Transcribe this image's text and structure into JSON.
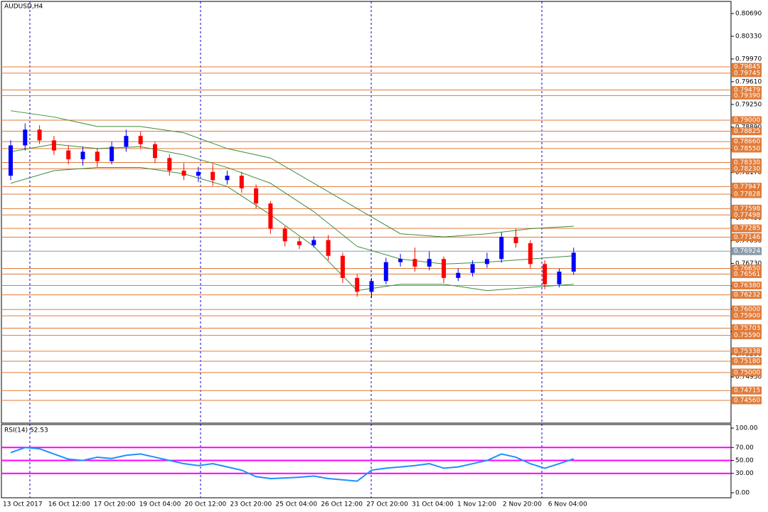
{
  "chart_data": [
    {
      "type": "candlestick",
      "title": "AUDUSD,H4",
      "ylim": [
        0.74199,
        0.80882
      ],
      "yticks": [
        {
          "value": 0.7493,
          "label": "0.74930"
        },
        {
          "value": 0.7529,
          "label": "0.75290"
        },
        {
          "value": 0.7565,
          "label": "0.75650"
        },
        {
          "value": 0.7601,
          "label": "0.76010"
        },
        {
          "value": 0.7637,
          "label": "0.76370"
        },
        {
          "value": 0.7673,
          "label": "0.76730"
        },
        {
          "value": 0.7709,
          "label": "0.77090"
        },
        {
          "value": 0.7745,
          "label": "0.77450"
        },
        {
          "value": 0.7781,
          "label": "0.77810"
        },
        {
          "value": 0.7817,
          "label": "0.78170"
        },
        {
          "value": 0.7853,
          "label": "0.78530"
        },
        {
          "value": 0.7889,
          "label": "0.78890"
        },
        {
          "value": 0.7925,
          "label": "0.79250"
        },
        {
          "value": 0.7961,
          "label": "0.79610"
        },
        {
          "value": 0.7997,
          "label": "0.79970"
        },
        {
          "value": 0.8033,
          "label": "0.80330"
        },
        {
          "value": 0.8069,
          "label": "0.80690"
        }
      ],
      "levels": [
        0.79845,
        0.79745,
        0.79479,
        {
          "value": 0.7939,
          "label": "0.79390"
        },
        {
          "value": 0.79,
          "label": "0.79000"
        },
        0.78825,
        {
          "value": 0.7866,
          "label": "0.78660"
        },
        {
          "value": 0.7855,
          "label": "0.78550"
        },
        {
          "value": 0.7833,
          "label": "0.78330"
        },
        {
          "value": 0.7823,
          "label": "0.78230"
        },
        0.77947,
        0.77828,
        0.77598,
        0.77498,
        0.77285,
        0.77146,
        {
          "value": 0.7665,
          "label": "0.76650"
        },
        0.76561,
        {
          "value": 0.7638,
          "label": "0.76380"
        },
        0.76232,
        {
          "value": 0.76,
          "label": "0.76000"
        },
        {
          "value": 0.759,
          "label": "0.75900"
        },
        0.75703,
        {
          "value": 0.7559,
          "label": "0.75590"
        },
        0.75338,
        {
          "value": 0.7518,
          "label": "0.75180"
        },
        {
          "value": 0.75,
          "label": "0.75000"
        },
        0.74715,
        {
          "value": 0.7456,
          "label": "0.74560"
        }
      ],
      "level_color": "#e07b39",
      "last_price": 0.76924,
      "up_color": "#0000ff",
      "down_color": "#ff0000",
      "open": [
        0.7812,
        0.786,
        0.7885,
        0.7868,
        0.7852,
        0.7838,
        0.785,
        0.7835,
        0.7858,
        0.7875,
        0.7862,
        0.784,
        0.782,
        0.7812,
        0.7818,
        0.7805,
        0.7812,
        0.7792,
        0.7768,
        0.7728,
        0.7708,
        0.7702,
        0.771,
        0.7685,
        0.765,
        0.7628,
        0.7645,
        0.7675,
        0.768,
        0.7668,
        0.768,
        0.765,
        0.7658,
        0.7672,
        0.768,
        0.7715,
        0.7705,
        0.7672,
        0.764,
        0.766
      ],
      "high": [
        0.7868,
        0.7895,
        0.7892,
        0.7875,
        0.786,
        0.7858,
        0.7856,
        0.7866,
        0.7885,
        0.7882,
        0.7866,
        0.7846,
        0.7832,
        0.7826,
        0.783,
        0.782,
        0.7818,
        0.7798,
        0.7772,
        0.7732,
        0.7714,
        0.7716,
        0.7718,
        0.769,
        0.7656,
        0.765,
        0.7682,
        0.7688,
        0.7698,
        0.7692,
        0.7684,
        0.7665,
        0.7678,
        0.769,
        0.7722,
        0.7728,
        0.771,
        0.7678,
        0.7665,
        0.7698
      ],
      "low": [
        0.7805,
        0.7852,
        0.7862,
        0.7845,
        0.783,
        0.7828,
        0.7826,
        0.783,
        0.785,
        0.7855,
        0.7832,
        0.7812,
        0.7805,
        0.7802,
        0.7796,
        0.7798,
        0.7785,
        0.776,
        0.772,
        0.77,
        0.7696,
        0.7698,
        0.7678,
        0.7642,
        0.762,
        0.7618,
        0.764,
        0.7668,
        0.766,
        0.7662,
        0.7642,
        0.7645,
        0.7652,
        0.7666,
        0.7674,
        0.7698,
        0.7665,
        0.7632,
        0.7635,
        0.7655
      ],
      "close": [
        0.786,
        0.7885,
        0.7868,
        0.7852,
        0.7838,
        0.785,
        0.7835,
        0.7858,
        0.7875,
        0.7862,
        0.784,
        0.782,
        0.7812,
        0.7818,
        0.7805,
        0.7812,
        0.7792,
        0.7768,
        0.7728,
        0.7708,
        0.7702,
        0.771,
        0.7685,
        0.765,
        0.7628,
        0.7645,
        0.7675,
        0.768,
        0.7668,
        0.768,
        0.765,
        0.7658,
        0.7672,
        0.768,
        0.7715,
        0.7705,
        0.7672,
        0.764,
        0.766,
        0.769
      ],
      "bands": {
        "color": "#3c8c3c",
        "x": [
          0,
          3,
          6,
          9,
          12,
          15,
          18,
          21,
          24,
          27,
          30,
          33,
          36,
          39
        ],
        "upper": [
          0.7915,
          0.7905,
          0.789,
          0.789,
          0.788,
          0.7855,
          0.784,
          0.78,
          0.776,
          0.772,
          0.7715,
          0.772,
          0.7728,
          0.7732
        ],
        "middle": [
          0.785,
          0.7862,
          0.7855,
          0.7858,
          0.7845,
          0.7825,
          0.78,
          0.7755,
          0.77,
          0.768,
          0.7672,
          0.7675,
          0.768,
          0.7685
        ],
        "lower": [
          0.78,
          0.782,
          0.7825,
          0.7825,
          0.7815,
          0.7795,
          0.775,
          0.77,
          0.763,
          0.764,
          0.764,
          0.763,
          0.7635,
          0.764
        ]
      },
      "xlabels": [
        "13 Oct 2017",
        "16 Oct 12:00",
        "17 Oct 20:00",
        "19 Oct 04:00",
        "20 Oct 12:00",
        "23 Oct 20:00",
        "25 Oct 04:00",
        "26 Oct 12:00",
        "27 Oct 20:00",
        "31 Oct 04:00",
        "1 Nov 12:00",
        "2 Nov 20:00",
        "6 Nov 04:00"
      ]
    },
    {
      "type": "line",
      "title": "RSI(14) 52.53",
      "color": "#1e90ff",
      "level_color": "#ff00ff",
      "ylim": [
        -7.7,
        105.5
      ],
      "yticks": [
        {
          "value": 0,
          "label": "0.00"
        },
        {
          "value": 30,
          "label": "30.00"
        },
        {
          "value": 50,
          "label": "50.00"
        },
        {
          "value": 70,
          "label": "70.00"
        },
        {
          "value": 100,
          "label": "100.00"
        }
      ],
      "levels": [
        70,
        50,
        30
      ],
      "values": [
        62,
        70,
        68,
        60,
        52,
        50,
        55,
        53,
        58,
        60,
        55,
        50,
        45,
        42,
        45,
        40,
        35,
        25,
        22,
        23,
        24,
        26,
        22,
        20,
        18,
        35,
        38,
        40,
        42,
        45,
        38,
        40,
        45,
        50,
        60,
        55,
        45,
        38,
        45,
        52.53
      ]
    }
  ]
}
